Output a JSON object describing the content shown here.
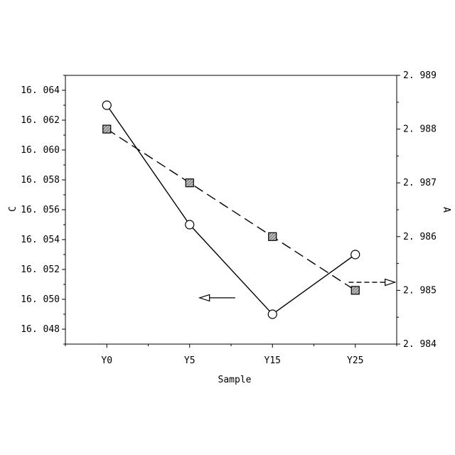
{
  "chart_data": {
    "type": "line",
    "categories": [
      "Y0",
      "Y5",
      "Y15",
      "Y25"
    ],
    "xlabel": "Sample",
    "ylabel_left": "C",
    "ylabel_right": "A",
    "y_left": {
      "range": [
        16.047,
        16.065
      ],
      "ticks": [
        "16.048",
        "16.050",
        "16.052",
        "16.054",
        "16.056",
        "16.058",
        "16.060",
        "16.062",
        "16.064"
      ]
    },
    "y_right": {
      "range": [
        2.984,
        2.989
      ],
      "ticks": [
        "2.984",
        "2.985",
        "2.986",
        "2.987",
        "2.988",
        "2.989"
      ]
    },
    "x_tick_positions": [
      0.5,
      1.5,
      2.5,
      3.5
    ],
    "x_range": [
      0,
      4
    ],
    "grid": false,
    "series": [
      {
        "axis": "left",
        "marker": "circle",
        "line_style": "solid",
        "values": [
          16.063,
          16.055,
          16.049,
          16.053
        ]
      },
      {
        "axis": "right",
        "marker": "square-hatched",
        "line_style": "dashed",
        "values": [
          2.988,
          2.987,
          2.986,
          2.985
        ]
      }
    ],
    "annotations": [
      {
        "type": "arrow",
        "direction": "left",
        "points_to_axis": "left",
        "y": 16.0501,
        "x_from": 2.05,
        "x_to": 1.62
      },
      {
        "type": "arrow",
        "direction": "right",
        "points_to_axis": "right",
        "y": 2.98515,
        "x_from": 3.42,
        "x_to": 3.98
      }
    ],
    "colors": {
      "line": "#000000",
      "marker_fill": "#ffffff",
      "hatch_fill": "#bbbbbb"
    }
  }
}
